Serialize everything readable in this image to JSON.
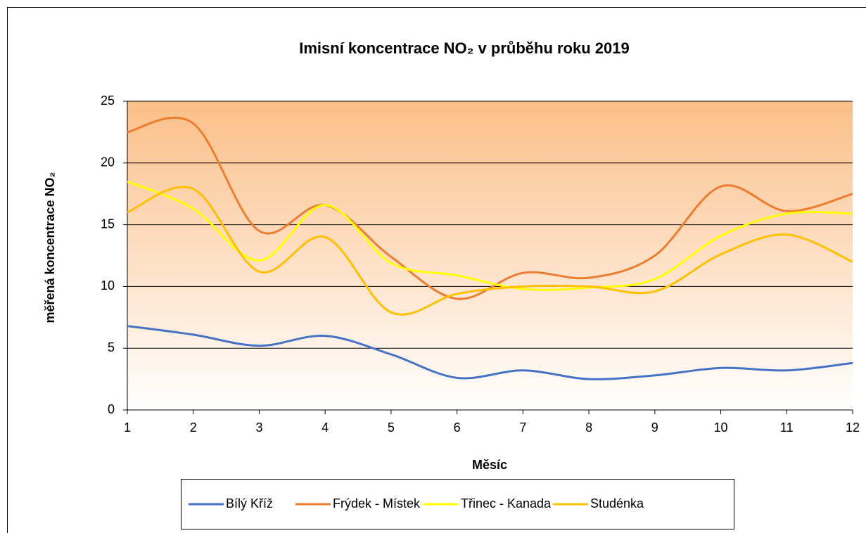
{
  "chart_data": {
    "type": "line",
    "title": "Imisní koncentrace NO₂ v průběhu roku 2019",
    "x_label": "Měsíc",
    "y_label": "měřená koncentrace NO₂",
    "x": [
      1,
      2,
      3,
      4,
      5,
      6,
      7,
      8,
      9,
      10,
      11,
      12
    ],
    "xlim": [
      1,
      12
    ],
    "xticks": [
      1,
      2,
      3,
      4,
      5,
      6,
      7,
      8,
      9,
      10,
      11,
      12
    ],
    "ylim": [
      0,
      25
    ],
    "yticks": [
      0,
      5,
      10,
      15,
      20,
      25
    ],
    "grid": true,
    "smooth": true,
    "legend": "bottom",
    "series": [
      {
        "name": "Bílý Kříž",
        "color": "#4472c4",
        "values": [
          6.8,
          6.1,
          5.2,
          6.0,
          4.5,
          2.6,
          3.2,
          2.5,
          2.8,
          3.4,
          3.2,
          3.8
        ]
      },
      {
        "name": "Frýdek - Místek",
        "color": "#ed7d31",
        "values": [
          22.5,
          23.2,
          14.5,
          16.6,
          12.4,
          9.0,
          11.1,
          10.7,
          12.5,
          18.1,
          16.1,
          17.5
        ]
      },
      {
        "name": "Třinec - Kanada",
        "color": "#ffff00",
        "values": [
          18.5,
          16.3,
          12.1,
          16.6,
          11.9,
          10.9,
          9.8,
          9.9,
          10.6,
          14.1,
          15.9,
          15.9
        ]
      },
      {
        "name": "Studénka",
        "color": "#ffc000",
        "values": [
          16.0,
          17.9,
          11.2,
          14.0,
          7.9,
          9.4,
          10.0,
          10.0,
          9.6,
          12.6,
          14.2,
          12.0
        ]
      }
    ]
  }
}
